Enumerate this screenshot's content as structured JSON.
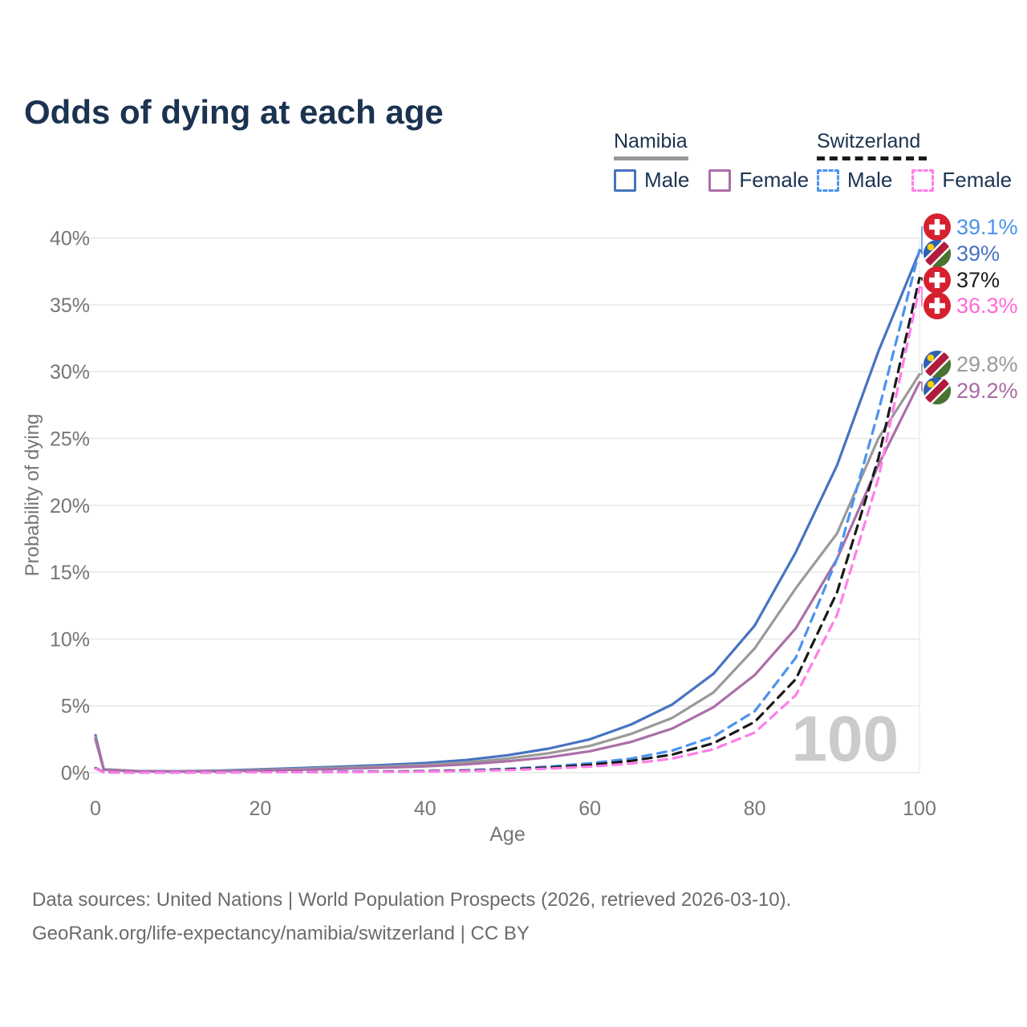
{
  "title": "Odds of dying at each age",
  "legend": {
    "groups": [
      {
        "name": "Namibia",
        "line_style": "solid",
        "underline_color": "#999999",
        "items": [
          {
            "label": "Male",
            "color": "#4673c1",
            "dashed": false
          },
          {
            "label": "Female",
            "color": "#ab6fa7",
            "dashed": false
          }
        ]
      },
      {
        "name": "Switzerland",
        "line_style": "dashed",
        "underline_color": "#1a1a1a",
        "items": [
          {
            "label": "Male",
            "color": "#4b93ef",
            "dashed": true
          },
          {
            "label": "Female",
            "color": "#ff7ee9",
            "dashed": true
          }
        ]
      }
    ]
  },
  "axes": {
    "x": {
      "label": "Age",
      "ticks": [
        0,
        20,
        40,
        60,
        80,
        100
      ],
      "range": [
        0,
        100
      ]
    },
    "y": {
      "label": "Probability of dying",
      "ticks": [
        "0%",
        "5%",
        "10%",
        "15%",
        "20%",
        "25%",
        "30%",
        "35%",
        "40%"
      ],
      "range_pct": [
        0,
        40
      ]
    }
  },
  "hover_age_watermark": "100",
  "end_labels": [
    {
      "value": "39.1%",
      "flag": "switzerland",
      "series": "Switzerland Male",
      "color": "#4b93ef"
    },
    {
      "value": "39%",
      "flag": "namibia",
      "series": "Namibia Male",
      "color": "#4673c1"
    },
    {
      "value": "37%",
      "flag": "switzerland",
      "series": "Switzerland All",
      "color": "#1a1a1a"
    },
    {
      "value": "36.3%",
      "flag": "switzerland",
      "series": "Switzerland Female",
      "color": "#ff6ad5"
    },
    {
      "value": "29.8%",
      "flag": "namibia",
      "series": "Namibia All",
      "color": "#9a9a9a"
    },
    {
      "value": "29.2%",
      "flag": "namibia",
      "series": "Namibia Female",
      "color": "#a96ba3"
    }
  ],
  "footer": {
    "line1": "Data sources: United Nations | World Population Prospects (2026, retrieved 2026-03-10).",
    "line2": "GeoRank.org/life-expectancy/namibia/switzerland | CC BY"
  },
  "chart_data": {
    "type": "line",
    "xlabel": "Age",
    "ylabel": "Probability of dying",
    "xlim": [
      0,
      100
    ],
    "ylim_pct": [
      0,
      40
    ],
    "grid": "horizontal",
    "legend_position": "top-right",
    "series": [
      {
        "name": "Namibia Male",
        "color": "#4673c1",
        "dash": false,
        "points": [
          [
            0,
            2.8
          ],
          [
            1,
            0.25
          ],
          [
            5,
            0.12
          ],
          [
            10,
            0.1
          ],
          [
            15,
            0.15
          ],
          [
            20,
            0.25
          ],
          [
            25,
            0.35
          ],
          [
            30,
            0.45
          ],
          [
            35,
            0.57
          ],
          [
            40,
            0.72
          ],
          [
            45,
            0.95
          ],
          [
            50,
            1.3
          ],
          [
            55,
            1.8
          ],
          [
            60,
            2.5
          ],
          [
            65,
            3.6
          ],
          [
            70,
            5.1
          ],
          [
            75,
            7.4
          ],
          [
            80,
            11.0
          ],
          [
            85,
            16.5
          ],
          [
            90,
            23.0
          ],
          [
            95,
            31.5
          ],
          [
            100,
            39.0
          ]
        ]
      },
      {
        "name": "Namibia All",
        "color": "#9a9a9a",
        "dash": false,
        "points": [
          [
            0,
            2.65
          ],
          [
            1,
            0.24
          ],
          [
            5,
            0.11
          ],
          [
            10,
            0.09
          ],
          [
            15,
            0.13
          ],
          [
            20,
            0.2
          ],
          [
            25,
            0.28
          ],
          [
            30,
            0.37
          ],
          [
            35,
            0.46
          ],
          [
            40,
            0.58
          ],
          [
            45,
            0.77
          ],
          [
            50,
            1.05
          ],
          [
            55,
            1.45
          ],
          [
            60,
            2.0
          ],
          [
            65,
            2.9
          ],
          [
            70,
            4.1
          ],
          [
            75,
            6.0
          ],
          [
            80,
            9.3
          ],
          [
            85,
            13.8
          ],
          [
            90,
            17.9
          ],
          [
            95,
            25.0
          ],
          [
            100,
            29.8
          ]
        ]
      },
      {
        "name": "Namibia Female",
        "color": "#ab6fa7",
        "dash": false,
        "points": [
          [
            0,
            2.5
          ],
          [
            1,
            0.22
          ],
          [
            5,
            0.1
          ],
          [
            10,
            0.08
          ],
          [
            15,
            0.11
          ],
          [
            20,
            0.16
          ],
          [
            25,
            0.22
          ],
          [
            30,
            0.29
          ],
          [
            35,
            0.37
          ],
          [
            40,
            0.47
          ],
          [
            45,
            0.62
          ],
          [
            50,
            0.85
          ],
          [
            55,
            1.15
          ],
          [
            60,
            1.6
          ],
          [
            65,
            2.3
          ],
          [
            70,
            3.3
          ],
          [
            75,
            4.9
          ],
          [
            80,
            7.3
          ],
          [
            85,
            10.8
          ],
          [
            90,
            16.0
          ],
          [
            95,
            23.0
          ],
          [
            100,
            29.2
          ]
        ]
      },
      {
        "name": "Switzerland Male",
        "color": "#4b93ef",
        "dash": true,
        "points": [
          [
            0,
            0.35
          ],
          [
            1,
            0.03
          ],
          [
            5,
            0.01
          ],
          [
            10,
            0.01
          ],
          [
            15,
            0.03
          ],
          [
            20,
            0.05
          ],
          [
            25,
            0.06
          ],
          [
            30,
            0.07
          ],
          [
            35,
            0.09
          ],
          [
            40,
            0.12
          ],
          [
            45,
            0.18
          ],
          [
            50,
            0.28
          ],
          [
            55,
            0.45
          ],
          [
            60,
            0.7
          ],
          [
            65,
            1.05
          ],
          [
            70,
            1.65
          ],
          [
            75,
            2.7
          ],
          [
            80,
            4.6
          ],
          [
            85,
            8.6
          ],
          [
            90,
            16.0
          ],
          [
            95,
            27.0
          ],
          [
            100,
            39.1
          ]
        ]
      },
      {
        "name": "Switzerland All",
        "color": "#1a1a1a",
        "dash": true,
        "points": [
          [
            0,
            0.33
          ],
          [
            1,
            0.025
          ],
          [
            5,
            0.01
          ],
          [
            10,
            0.01
          ],
          [
            15,
            0.02
          ],
          [
            20,
            0.04
          ],
          [
            25,
            0.05
          ],
          [
            30,
            0.06
          ],
          [
            35,
            0.08
          ],
          [
            40,
            0.1
          ],
          [
            45,
            0.15
          ],
          [
            50,
            0.24
          ],
          [
            55,
            0.38
          ],
          [
            60,
            0.58
          ],
          [
            65,
            0.88
          ],
          [
            70,
            1.35
          ],
          [
            75,
            2.2
          ],
          [
            80,
            3.8
          ],
          [
            85,
            7.0
          ],
          [
            90,
            13.5
          ],
          [
            95,
            23.5
          ],
          [
            100,
            37.0
          ]
        ]
      },
      {
        "name": "Switzerland Female",
        "color": "#ff7ee9",
        "dash": true,
        "points": [
          [
            0,
            0.3
          ],
          [
            1,
            0.02
          ],
          [
            5,
            0.01
          ],
          [
            10,
            0.01
          ],
          [
            15,
            0.02
          ],
          [
            20,
            0.03
          ],
          [
            25,
            0.04
          ],
          [
            30,
            0.05
          ],
          [
            35,
            0.06
          ],
          [
            40,
            0.08
          ],
          [
            45,
            0.12
          ],
          [
            50,
            0.19
          ],
          [
            55,
            0.3
          ],
          [
            60,
            0.45
          ],
          [
            65,
            0.68
          ],
          [
            70,
            1.05
          ],
          [
            75,
            1.75
          ],
          [
            80,
            3.0
          ],
          [
            85,
            5.8
          ],
          [
            90,
            11.8
          ],
          [
            95,
            22.0
          ],
          [
            100,
            36.3
          ]
        ]
      }
    ]
  }
}
